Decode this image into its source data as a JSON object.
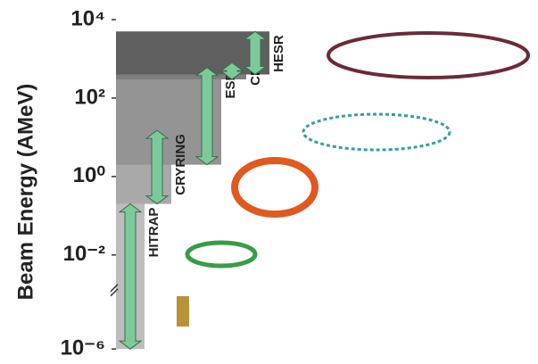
{
  "chart_data": {
    "type": "range",
    "y_label": "Beam Energy (AMeV)",
    "log_scale": true,
    "ylim": [
      7e-07,
      10000
    ],
    "axis_break": [
      4e-05,
      0.0016
    ],
    "yticks": [
      {
        "value": 10000,
        "label": "10⁴"
      },
      {
        "value": 100,
        "label": "10²"
      },
      {
        "value": 1,
        "label": "10⁰"
      },
      {
        "value": 0.01,
        "label": "10⁻²"
      },
      {
        "value": 1e-06,
        "label": "10⁻⁶"
      }
    ],
    "facilities": [
      {
        "name": "HITRAP",
        "min": 1e-06,
        "max": 0.2,
        "color": "#bdbdbd"
      },
      {
        "name": "CRYRING",
        "min": 0.2,
        "max": 15,
        "color": "#a9a9a9"
      },
      {
        "name": "ESR",
        "min": 2,
        "max": 600,
        "color": "#949494"
      },
      {
        "name": "CR",
        "min": 300,
        "max": 800,
        "color": "#7e7e7e"
      },
      {
        "name": "HESR",
        "min": 400,
        "max": 5000,
        "color": "#5f5f5f"
      }
    ],
    "arrow_color": "#7dc99a"
  }
}
